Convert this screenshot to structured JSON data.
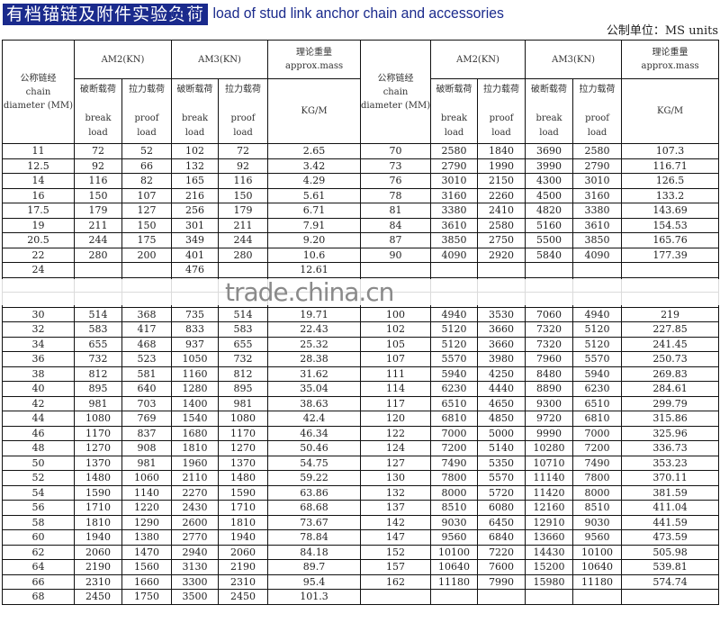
{
  "title_cn": "有档锚链及附件实验负荷",
  "title_en": "Testing load of stud link anchor chain and accessories",
  "units": "公制单位：MS units",
  "watermark": "trade.china.cn",
  "header": {
    "diameter_cn": "公称链经",
    "diameter_en1": "chain",
    "diameter_en2": "diameter (MM)",
    "am2": "AM2(KN)",
    "am3": "AM3(KN)",
    "mass_cn": "理论重量",
    "mass_en": "approx.mass",
    "mass_unit": "KG/M",
    "break_cn": "破断载荷",
    "break_en1": "break",
    "break_en2": "load",
    "proof_cn": "拉力载荷",
    "proof_en1": "proof",
    "proof_en2": "load"
  },
  "rows": [
    [
      [
        "11",
        "72",
        "52",
        "102",
        "72",
        "2.65"
      ],
      [
        "70",
        "2580",
        "1840",
        "3690",
        "2580",
        "107.3"
      ]
    ],
    [
      [
        "12.5",
        "92",
        "66",
        "132",
        "92",
        "3.42"
      ],
      [
        "73",
        "2790",
        "1990",
        "3990",
        "2790",
        "116.71"
      ]
    ],
    [
      [
        "14",
        "116",
        "82",
        "165",
        "116",
        "4.29"
      ],
      [
        "76",
        "3010",
        "2150",
        "4300",
        "3010",
        "126.5"
      ]
    ],
    [
      [
        "16",
        "150",
        "107",
        "216",
        "150",
        "5.61"
      ],
      [
        "78",
        "3160",
        "2260",
        "4500",
        "3160",
        "133.2"
      ]
    ],
    [
      [
        "17.5",
        "179",
        "127",
        "256",
        "179",
        "6.71"
      ],
      [
        "81",
        "3380",
        "2410",
        "4820",
        "3380",
        "143.69"
      ]
    ],
    [
      [
        "19",
        "211",
        "150",
        "301",
        "211",
        "7.91"
      ],
      [
        "84",
        "3610",
        "2580",
        "5160",
        "3610",
        "154.53"
      ]
    ],
    [
      [
        "20.5",
        "244",
        "175",
        "349",
        "244",
        "9.20"
      ],
      [
        "87",
        "3850",
        "2750",
        "5500",
        "3850",
        "165.76"
      ]
    ],
    [
      [
        "22",
        "280",
        "200",
        "401",
        "280",
        "10.6"
      ],
      [
        "90",
        "4090",
        "2920",
        "5840",
        "4090",
        "177.39"
      ]
    ],
    [
      [
        "24",
        "",
        "",
        "476",
        "",
        "12.61"
      ],
      [
        "",
        "",
        "",
        "",
        "",
        ""
      ]
    ],
    [
      [
        "",
        "",
        "",
        "",
        "",
        ""
      ],
      [
        "",
        "",
        "",
        "",
        "",
        ""
      ]
    ],
    [
      [
        "",
        "",
        "",
        "",
        "",
        ""
      ],
      [
        "",
        "",
        "",
        "",
        "",
        ""
      ]
    ],
    [
      [
        "30",
        "514",
        "368",
        "735",
        "514",
        "19.71"
      ],
      [
        "100",
        "4940",
        "3530",
        "7060",
        "4940",
        "219"
      ]
    ],
    [
      [
        "32",
        "583",
        "417",
        "833",
        "583",
        "22.43"
      ],
      [
        "102",
        "5120",
        "3660",
        "7320",
        "5120",
        "227.85"
      ]
    ],
    [
      [
        "34",
        "655",
        "468",
        "937",
        "655",
        "25.32"
      ],
      [
        "105",
        "5120",
        "3660",
        "7320",
        "5120",
        "241.45"
      ]
    ],
    [
      [
        "36",
        "732",
        "523",
        "1050",
        "732",
        "28.38"
      ],
      [
        "107",
        "5570",
        "3980",
        "7960",
        "5570",
        "250.73"
      ]
    ],
    [
      [
        "38",
        "812",
        "581",
        "1160",
        "812",
        "31.62"
      ],
      [
        "111",
        "5940",
        "4250",
        "8480",
        "5940",
        "269.83"
      ]
    ],
    [
      [
        "40",
        "895",
        "640",
        "1280",
        "895",
        "35.04"
      ],
      [
        "114",
        "6230",
        "4440",
        "8890",
        "6230",
        "284.61"
      ]
    ],
    [
      [
        "42",
        "981",
        "703",
        "1400",
        "981",
        "38.63"
      ],
      [
        "117",
        "6510",
        "4650",
        "9300",
        "6510",
        "299.79"
      ]
    ],
    [
      [
        "44",
        "1080",
        "769",
        "1540",
        "1080",
        "42.4"
      ],
      [
        "120",
        "6810",
        "4850",
        "9720",
        "6810",
        "315.86"
      ]
    ],
    [
      [
        "46",
        "1170",
        "837",
        "1680",
        "1170",
        "46.34"
      ],
      [
        "122",
        "7000",
        "5000",
        "9990",
        "7000",
        "325.96"
      ]
    ],
    [
      [
        "48",
        "1270",
        "908",
        "1810",
        "1270",
        "50.46"
      ],
      [
        "124",
        "7200",
        "5140",
        "10280",
        "7200",
        "336.73"
      ]
    ],
    [
      [
        "50",
        "1370",
        "981",
        "1960",
        "1370",
        "54.75"
      ],
      [
        "127",
        "7490",
        "5350",
        "10710",
        "7490",
        "353.23"
      ]
    ],
    [
      [
        "52",
        "1480",
        "1060",
        "2110",
        "1480",
        "59.22"
      ],
      [
        "130",
        "7800",
        "5570",
        "11140",
        "7800",
        "370.11"
      ]
    ],
    [
      [
        "54",
        "1590",
        "1140",
        "2270",
        "1590",
        "63.86"
      ],
      [
        "132",
        "8000",
        "5720",
        "11420",
        "8000",
        "381.59"
      ]
    ],
    [
      [
        "56",
        "1710",
        "1220",
        "2430",
        "1710",
        "68.68"
      ],
      [
        "137",
        "8510",
        "6080",
        "12160",
        "8510",
        "411.04"
      ]
    ],
    [
      [
        "58",
        "1810",
        "1290",
        "2600",
        "1810",
        "73.67"
      ],
      [
        "142",
        "9030",
        "6450",
        "12910",
        "9030",
        "441.59"
      ]
    ],
    [
      [
        "60",
        "1940",
        "1380",
        "2770",
        "1940",
        "78.84"
      ],
      [
        "147",
        "9560",
        "6840",
        "13660",
        "9560",
        "473.59"
      ]
    ],
    [
      [
        "62",
        "2060",
        "1470",
        "2940",
        "2060",
        "84.18"
      ],
      [
        "152",
        "10100",
        "7220",
        "14430",
        "10100",
        "505.98"
      ]
    ],
    [
      [
        "64",
        "2190",
        "1560",
        "3130",
        "2190",
        "89.7"
      ],
      [
        "157",
        "10640",
        "7600",
        "15200",
        "10640",
        "539.81"
      ]
    ],
    [
      [
        "66",
        "2310",
        "1660",
        "3300",
        "2310",
        "95.4"
      ],
      [
        "162",
        "11180",
        "7990",
        "15980",
        "11180",
        "574.74"
      ]
    ],
    [
      [
        "68",
        "2450",
        "1750",
        "3500",
        "2450",
        "101.3"
      ],
      [
        "",
        "",
        "",
        "",
        "",
        ""
      ]
    ]
  ]
}
